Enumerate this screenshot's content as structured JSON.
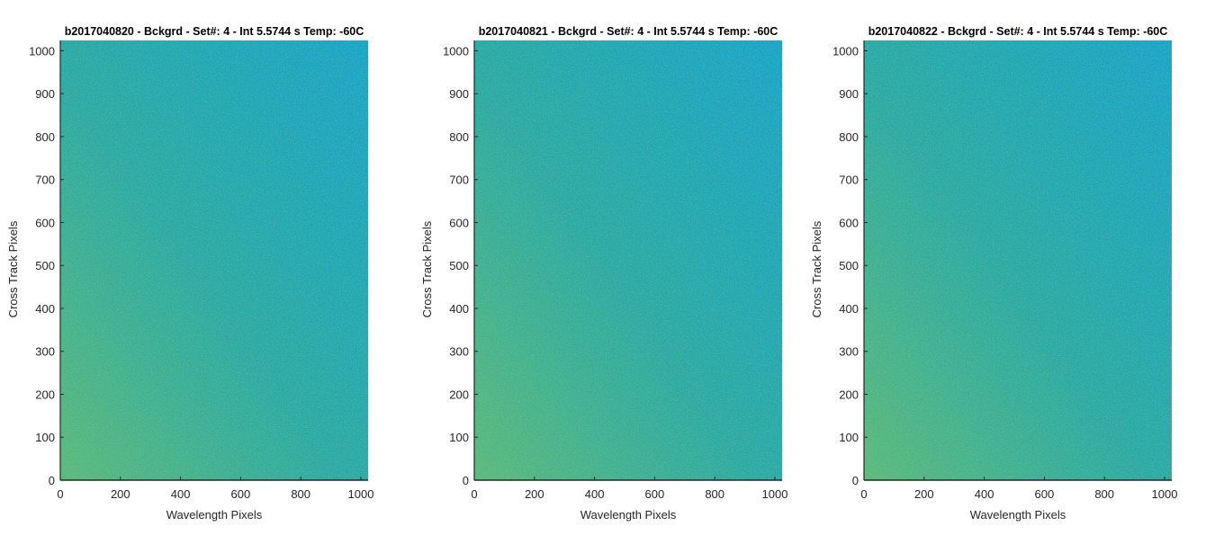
{
  "figure": {
    "background": "#ffffff"
  },
  "chart_data": [
    {
      "type": "heatmap",
      "title": "b2017040820 - Bckgrd - Set#: 4 - Int 5.5744 s Temp: -60C",
      "xlabel": "Wavelength Pixels",
      "ylabel": "Cross Track Pixels",
      "xlim": [
        0,
        1024
      ],
      "ylim": [
        0,
        1024
      ],
      "xticks": [
        0,
        200,
        400,
        600,
        800,
        1000
      ],
      "yticks": [
        0,
        100,
        200,
        300,
        400,
        500,
        600,
        700,
        800,
        900,
        1000
      ],
      "grid": false,
      "colormap": "parula",
      "colors": {
        "low": "#16a3c9",
        "mid": "#2aa9a2",
        "high": "#5bb87a"
      },
      "intensity_trend": "higher toward low wavelength pixels, lower toward high wavelength pixels"
    },
    {
      "type": "heatmap",
      "title": "b2017040821 - Bckgrd - Set#: 4 - Int 5.5744 s Temp: -60C",
      "xlabel": "Wavelength Pixels",
      "ylabel": "Cross Track Pixels",
      "xlim": [
        0,
        1024
      ],
      "ylim": [
        0,
        1024
      ],
      "xticks": [
        0,
        200,
        400,
        600,
        800,
        1000
      ],
      "yticks": [
        0,
        100,
        200,
        300,
        400,
        500,
        600,
        700,
        800,
        900,
        1000
      ],
      "grid": false,
      "colormap": "parula",
      "colors": {
        "low": "#16a3c9",
        "mid": "#2aa9a2",
        "high": "#5bb87a"
      },
      "intensity_trend": "higher toward low wavelength pixels, lower toward high wavelength pixels"
    },
    {
      "type": "heatmap",
      "title": "b2017040822 - Bckgrd - Set#: 4 - Int 5.5744 s Temp: -60C",
      "xlabel": "Wavelength Pixels",
      "ylabel": "Cross Track Pixels",
      "xlim": [
        0,
        1024
      ],
      "ylim": [
        0,
        1024
      ],
      "xticks": [
        0,
        200,
        400,
        600,
        800,
        1000
      ],
      "yticks": [
        0,
        100,
        200,
        300,
        400,
        500,
        600,
        700,
        800,
        900,
        1000
      ],
      "grid": false,
      "colormap": "parula",
      "colors": {
        "low": "#16a3c9",
        "mid": "#2aa9a2",
        "high": "#5bb87a"
      },
      "intensity_trend": "higher toward low wavelength pixels, lower toward high wavelength pixels"
    }
  ]
}
